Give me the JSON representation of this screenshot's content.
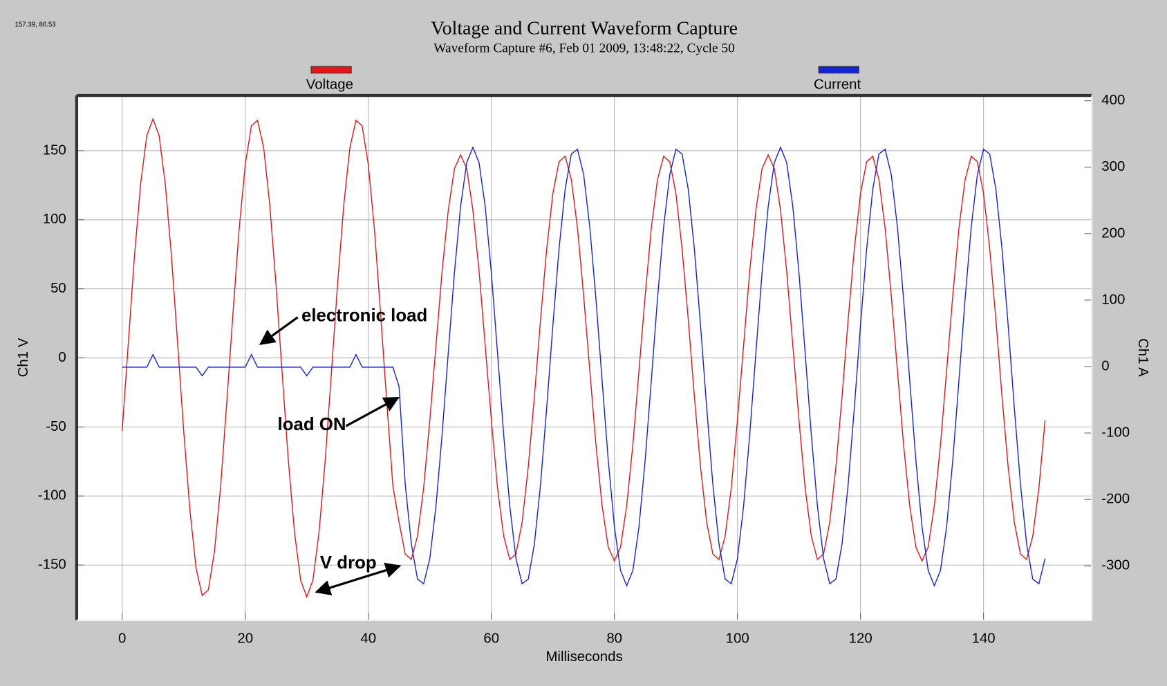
{
  "chart_data": {
    "type": "line",
    "corner_text": "157.39, 86.53",
    "title": "Voltage and Current Waveform Capture",
    "subtitle": "Waveform Capture #6, Feb 01 2009, 13:48:22,  Cycle 50",
    "x_label": "Milliseconds",
    "y_label": "Ch1 V",
    "y2_label": "Ch1 A",
    "annotations": [
      "electronic load",
      "load ON",
      "V drop"
    ],
    "grid": true,
    "xlim": [
      -7.4,
      157.6
    ],
    "xticks": [
      0,
      20,
      40,
      60,
      80,
      100,
      120,
      140
    ],
    "ylim": [
      -190,
      190
    ],
    "yticks": [
      -150,
      -100,
      -50,
      0,
      50,
      100,
      150
    ],
    "y2lim": [
      -382,
      408
    ],
    "y2ticks": [
      -300,
      -200,
      -100,
      0,
      100,
      200,
      300,
      400
    ],
    "x": [
      0,
      1,
      2,
      3,
      4,
      5,
      6,
      7,
      8,
      9,
      10,
      11,
      12,
      13,
      14,
      15,
      16,
      17,
      18,
      19,
      20,
      21,
      22,
      23,
      24,
      25,
      26,
      27,
      28,
      29,
      30,
      31,
      32,
      33,
      34,
      35,
      36,
      37,
      38,
      39,
      40,
      41,
      42,
      43,
      44,
      45,
      46,
      47,
      48,
      49,
      50,
      51,
      52,
      53,
      54,
      55,
      56,
      57,
      58,
      59,
      60,
      61,
      62,
      63,
      64,
      65,
      66,
      67,
      68,
      69,
      70,
      71,
      72,
      73,
      74,
      75,
      76,
      77,
      78,
      79,
      80,
      81,
      82,
      83,
      84,
      85,
      86,
      87,
      88,
      89,
      90,
      91,
      92,
      93,
      94,
      95,
      96,
      97,
      98,
      99,
      100,
      101,
      102,
      103,
      104,
      105,
      106,
      107,
      108,
      109,
      110,
      111,
      112,
      113,
      114,
      115,
      116,
      117,
      118,
      119,
      120,
      121,
      122,
      123,
      124,
      125,
      126,
      127,
      128,
      129,
      130,
      131,
      132,
      133,
      134,
      135,
      136,
      137,
      138,
      139,
      140,
      141,
      142,
      143,
      144,
      145,
      146,
      147,
      148,
      149,
      150
    ],
    "series": [
      {
        "name": "Voltage",
        "color": "#e01818",
        "axis": "y",
        "values": [
          -53,
          11,
          74,
          126,
          161,
          173,
          161,
          126,
          74,
          11,
          -53,
          -110,
          -152,
          -172,
          -168,
          -140,
          -93,
          -32,
          32,
          93,
          140,
          168,
          172,
          152,
          110,
          53,
          -11,
          -74,
          -126,
          -161,
          -173,
          -161,
          -126,
          -74,
          -11,
          53,
          110,
          152,
          172,
          168,
          140,
          93,
          32,
          -32,
          -93,
          -119,
          -142,
          -146,
          -129,
          -94,
          -45,
          9,
          63,
          107,
          137,
          147,
          137,
          107,
          63,
          9,
          -45,
          -94,
          -129,
          -146,
          -142,
          -119,
          -79,
          -28,
          28,
          79,
          119,
          142,
          146,
          129,
          94,
          45,
          -9,
          -63,
          -107,
          -137,
          -147,
          -137,
          -107,
          -63,
          -9,
          45,
          94,
          129,
          146,
          142,
          119,
          79,
          28,
          -28,
          -79,
          -119,
          -142,
          -146,
          -129,
          -94,
          -45,
          9,
          63,
          107,
          137,
          147,
          137,
          107,
          63,
          9,
          -45,
          -94,
          -129,
          -146,
          -142,
          -119,
          -79,
          -28,
          28,
          79,
          119,
          142,
          146,
          129,
          94,
          45,
          -9,
          -63,
          -107,
          -137,
          -147,
          -137,
          -107,
          -63,
          -9,
          45,
          94,
          129,
          146,
          142,
          119,
          79,
          28,
          -28,
          -79,
          -119,
          -142,
          -146,
          -129,
          -94,
          -45
        ]
      },
      {
        "name": "Current",
        "color": "#1424d0",
        "axis": "y2",
        "values": [
          -1,
          -1,
          -1,
          -1,
          -1,
          18,
          -1,
          -1,
          -1,
          -1,
          -1,
          -1,
          -1,
          -14,
          -1,
          -1,
          -1,
          -1,
          -1,
          -1,
          -1,
          18,
          -1,
          -1,
          -1,
          -1,
          -1,
          -1,
          -1,
          -1,
          -14,
          -1,
          -1,
          -1,
          -1,
          -1,
          -1,
          -1,
          18,
          -1,
          -1,
          -1,
          -1,
          -1,
          -1,
          -30,
          -177,
          -267,
          -320,
          -327,
          -289,
          -210,
          -102,
          21,
          141,
          241,
          307,
          330,
          307,
          241,
          141,
          21,
          -102,
          -210,
          -289,
          -327,
          -320,
          -267,
          -177,
          -62,
          62,
          177,
          267,
          320,
          327,
          289,
          210,
          102,
          -21,
          -141,
          -241,
          -307,
          -330,
          -307,
          -241,
          -141,
          -21,
          102,
          210,
          289,
          327,
          320,
          267,
          177,
          62,
          -62,
          -177,
          -267,
          -320,
          -327,
          -289,
          -210,
          -102,
          21,
          141,
          241,
          307,
          330,
          307,
          241,
          141,
          21,
          -102,
          -210,
          -289,
          -327,
          -320,
          -267,
          -177,
          -62,
          62,
          177,
          267,
          320,
          327,
          289,
          210,
          102,
          -21,
          -141,
          -241,
          -307,
          -330,
          -307,
          -241,
          -141,
          -21,
          102,
          210,
          289,
          327,
          320,
          267,
          177,
          62,
          -62,
          -177,
          -267,
          -320,
          -327,
          -289
        ]
      }
    ]
  }
}
